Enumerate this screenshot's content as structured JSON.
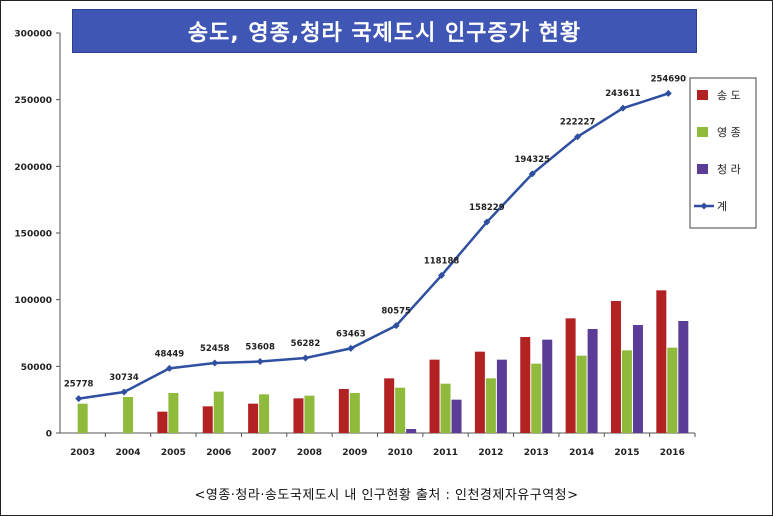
{
  "chart_data": {
    "type": "bar",
    "title": "송도, 영종,청라 국제도시 인구증가 현황",
    "source": "<영종·청라·송도국제도시 내 인구현황 출처 : 인천경제자유구역청>",
    "categories": [
      "2003",
      "2004",
      "2005",
      "2006",
      "2007",
      "2008",
      "2009",
      "2010",
      "2011",
      "2012",
      "2013",
      "2014",
      "2015",
      "2016"
    ],
    "ylim": [
      0,
      300000
    ],
    "yticks": [
      "0",
      "50000",
      "100000",
      "150000",
      "200000",
      "250000",
      "300000"
    ],
    "legend_position": "right",
    "grid": false,
    "series": [
      {
        "name": "송 도",
        "type": "bar",
        "color": "#b22222",
        "values": [
          0,
          0,
          16000,
          20000,
          22000,
          26000,
          33000,
          41000,
          55000,
          61000,
          72000,
          86000,
          99000,
          107000
        ]
      },
      {
        "name": "영 종",
        "type": "bar",
        "color": "#8fba3c",
        "values": [
          22000,
          27000,
          30000,
          31000,
          29000,
          28000,
          30000,
          34000,
          37000,
          41000,
          52000,
          58000,
          62000,
          64000
        ]
      },
      {
        "name": "청 라",
        "type": "bar",
        "color": "#5b3c96",
        "values": [
          0,
          0,
          0,
          0,
          0,
          0,
          0,
          3000,
          25000,
          55000,
          70000,
          78000,
          81000,
          84000
        ]
      },
      {
        "name": "계",
        "type": "line",
        "color": "#2f4fa0",
        "values": [
          25778,
          30734,
          48449,
          52458,
          53608,
          56282,
          63463,
          80575,
          118188,
          158229,
          194325,
          222227,
          243611,
          254690
        ],
        "labels": [
          "25778",
          "30734",
          "48449",
          "52458",
          "53608",
          "56282",
          "63463",
          "80575",
          "118188",
          "158229",
          "194325",
          "222227",
          "243611",
          "254690"
        ]
      }
    ]
  }
}
